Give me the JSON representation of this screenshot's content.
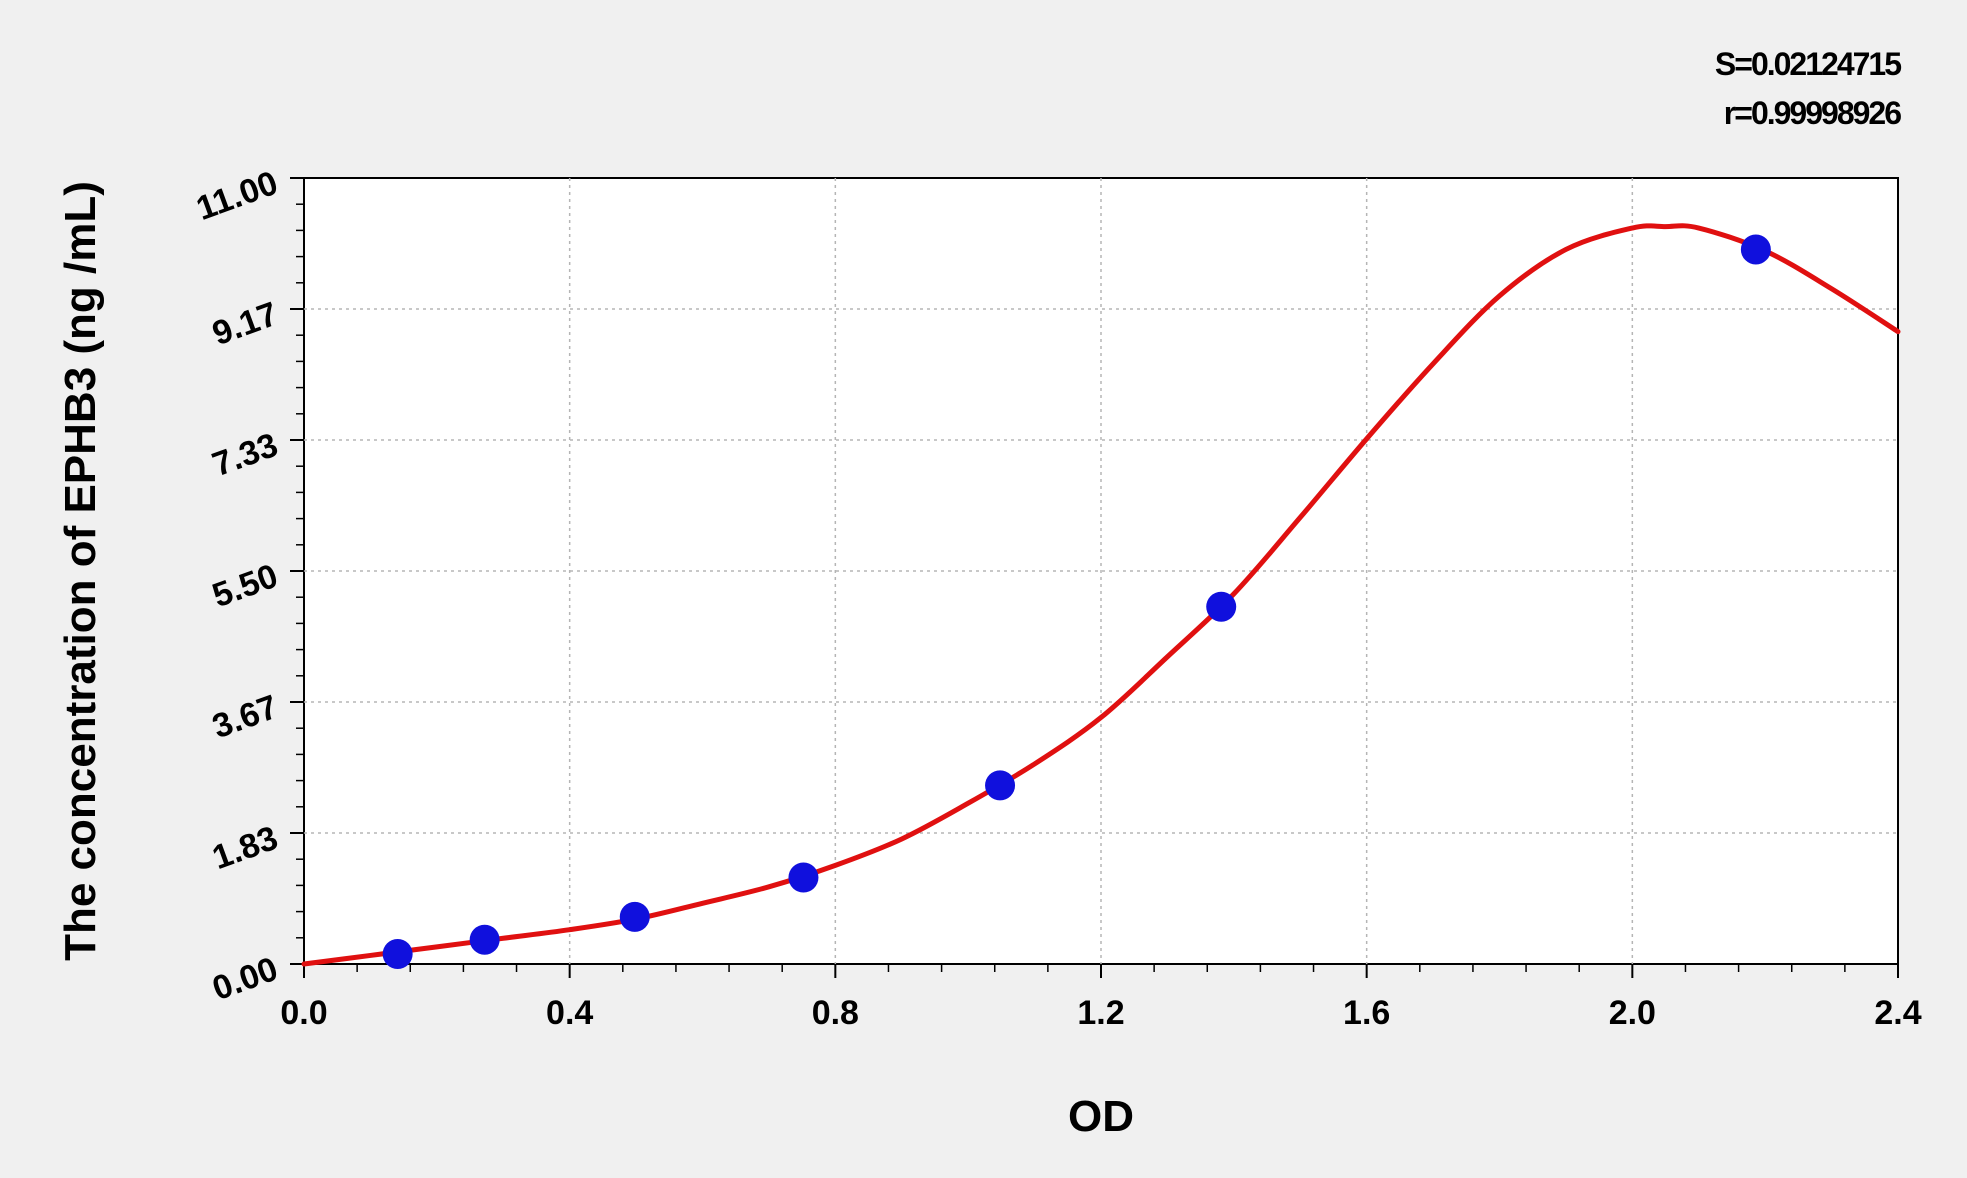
{
  "chart_data": {
    "type": "scatter",
    "title": "",
    "xlabel": "OD",
    "ylabel": "The concentration of  EPHB3  (ng /mL)",
    "xlim": [
      0.0,
      2.4
    ],
    "ylim": [
      0.0,
      11.0
    ],
    "x_ticks": [
      "0.0",
      "0.4",
      "0.8",
      "1.2",
      "1.6",
      "2.0",
      "2.4"
    ],
    "y_ticks": [
      "0.00",
      "1.83",
      "3.67",
      "5.50",
      "7.33",
      "9.17",
      "11.00"
    ],
    "grid": true,
    "stats": [
      "S=0.02124715",
      "r=0.99998926"
    ],
    "series": [
      {
        "kind": "points",
        "color": "#1010dd",
        "x": [
          0.141,
          0.272,
          0.498,
          0.752,
          1.048,
          1.381,
          2.186
        ],
        "y": [
          0.14,
          0.34,
          0.66,
          1.21,
          2.5,
          5.0,
          10.0
        ]
      },
      {
        "kind": "fit-curve",
        "color": "#e01010",
        "x": [
          0.0,
          0.1,
          0.2,
          0.3,
          0.4,
          0.5,
          0.6,
          0.7,
          0.8,
          0.9,
          1.0,
          1.1,
          1.2,
          1.3,
          1.4,
          1.5,
          1.6,
          1.7,
          1.8,
          1.9,
          2.0,
          2.05,
          2.1,
          2.2,
          2.3,
          2.4
        ],
        "y": [
          0.0,
          0.12,
          0.24,
          0.36,
          0.48,
          0.63,
          0.85,
          1.08,
          1.38,
          1.75,
          2.25,
          2.8,
          3.45,
          4.3,
          5.18,
          6.25,
          7.35,
          8.4,
          9.35,
          10.0,
          10.3,
          10.32,
          10.3,
          9.98,
          9.45,
          8.85
        ]
      }
    ]
  }
}
